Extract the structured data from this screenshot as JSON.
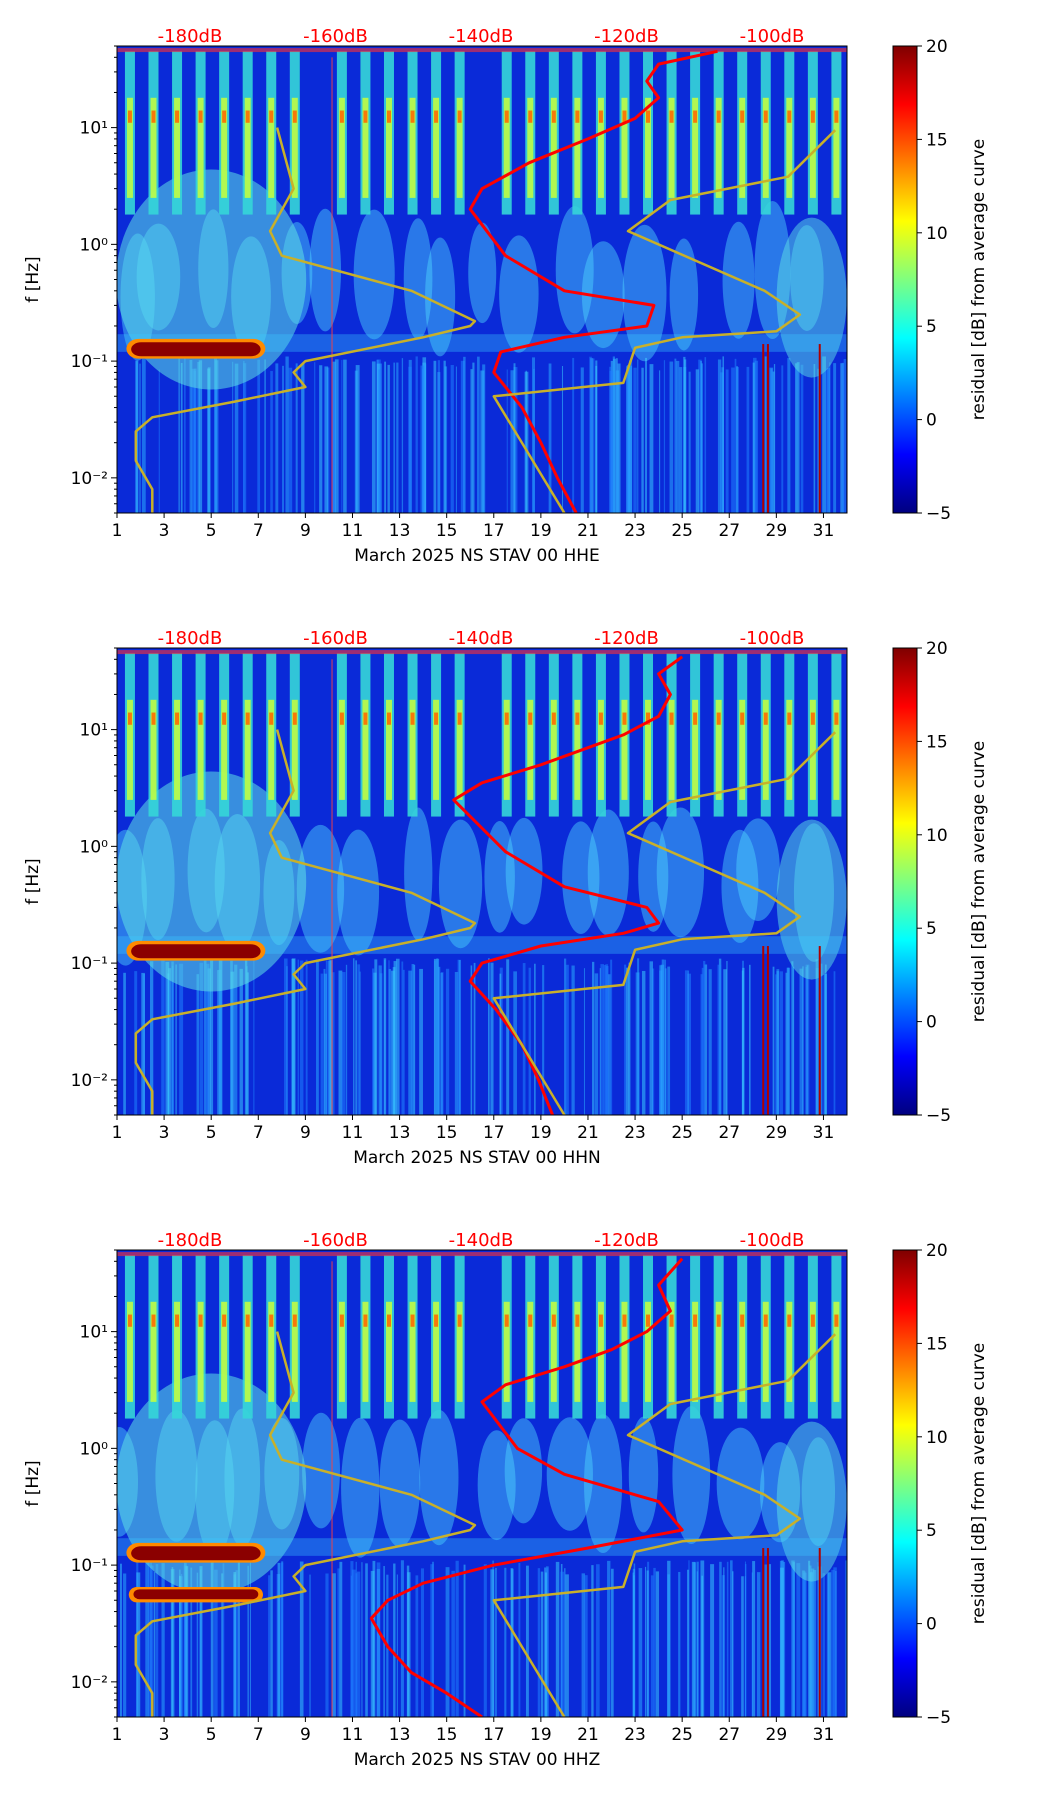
{
  "colorbar": {
    "label": "residual [dB] from average curve",
    "ticks": [
      "20",
      "15",
      "10",
      "5",
      "0",
      "−5"
    ],
    "tick_values": [
      20,
      15,
      10,
      5,
      0,
      -5
    ],
    "range": [
      -5,
      20
    ],
    "colormap": [
      "#00007f",
      "#0000ff",
      "#007fff",
      "#00ffff",
      "#7fff7f",
      "#ffff00",
      "#ff7f00",
      "#ff0000",
      "#7f0000"
    ]
  },
  "axes": {
    "ylabel": "f [Hz]",
    "yticks": [
      "10⁻²",
      "10⁻¹",
      "10⁰",
      "10¹"
    ],
    "ytick_values": [
      0.01,
      0.1,
      1,
      10
    ],
    "ylim": [
      0.005,
      50
    ],
    "xticks": [
      "1",
      "3",
      "5",
      "7",
      "9",
      "11",
      "13",
      "15",
      "17",
      "19",
      "21",
      "23",
      "25",
      "27",
      "29",
      "31"
    ],
    "xtick_values": [
      1,
      3,
      5,
      7,
      9,
      11,
      13,
      15,
      17,
      19,
      21,
      23,
      25,
      27,
      29,
      31
    ],
    "xlim": [
      1,
      32
    ],
    "db_labels": [
      "-180dB",
      "-160dB",
      "-140dB",
      "-120dB",
      "-100dB"
    ],
    "db_values": [
      -180,
      -160,
      -140,
      -120,
      -100
    ]
  },
  "chart_data": [
    {
      "type": "heatmap",
      "title": "",
      "xlabel": "March 2025 NS STAV 00 HHE",
      "ylabel": "f [Hz]",
      "xlim": [
        1,
        32
      ],
      "ylim": [
        0.005,
        50
      ],
      "overlays": [
        {
          "name": "noise-curve-1",
          "color": "#ff0000",
          "points": [
            [
              20.5,
              0.005
            ],
            [
              19.7,
              0.01
            ],
            [
              19,
              0.02
            ],
            [
              18.2,
              0.04
            ],
            [
              17,
              0.08
            ],
            [
              17.3,
              0.12
            ],
            [
              20,
              0.16
            ],
            [
              23.5,
              0.2
            ],
            [
              23.8,
              0.3
            ],
            [
              20,
              0.4
            ],
            [
              17.5,
              0.8
            ],
            [
              16,
              2
            ],
            [
              16.5,
              3
            ],
            [
              18.5,
              5
            ],
            [
              21,
              8
            ],
            [
              23,
              12
            ],
            [
              24,
              18
            ],
            [
              23.5,
              25
            ],
            [
              24,
              35
            ],
            [
              26.5,
              45
            ]
          ]
        },
        {
          "name": "low-noise-model",
          "color": "#c8b02a",
          "points": [
            [
              2.5,
              0.005
            ],
            [
              2.5,
              0.008
            ],
            [
              1.8,
              0.014
            ],
            [
              1.8,
              0.025
            ],
            [
              2.5,
              0.033
            ],
            [
              6,
              0.045
            ],
            [
              9,
              0.06
            ],
            [
              8.5,
              0.08
            ],
            [
              9,
              0.1
            ],
            [
              14,
              0.16
            ],
            [
              16,
              0.2
            ],
            [
              16.2,
              0.22
            ],
            [
              13.5,
              0.4
            ],
            [
              8,
              0.8
            ],
            [
              7.5,
              1.3
            ],
            [
              8.5,
              3
            ],
            [
              7.8,
              10
            ]
          ]
        },
        {
          "name": "high-noise-model",
          "color": "#c8b02a",
          "points": [
            [
              20,
              0.005
            ],
            [
              17,
              0.05
            ],
            [
              22.5,
              0.065
            ],
            [
              23,
              0.13
            ],
            [
              25,
              0.16
            ],
            [
              29,
              0.18
            ],
            [
              30,
              0.25
            ],
            [
              28.5,
              0.4
            ],
            [
              22.7,
              1.3
            ],
            [
              24.5,
              2.4
            ],
            [
              29.5,
              3.8
            ],
            [
              31.5,
              9.5
            ]
          ]
        }
      ]
    },
    {
      "type": "heatmap",
      "title": "",
      "xlabel": "March 2025 NS STAV 00 HHN",
      "ylabel": "f [Hz]",
      "xlim": [
        1,
        32
      ],
      "ylim": [
        0.005,
        50
      ],
      "overlays": [
        {
          "name": "noise-curve-1",
          "color": "#ff0000",
          "points": [
            [
              19.5,
              0.005
            ],
            [
              18.9,
              0.01
            ],
            [
              18.2,
              0.02
            ],
            [
              17.1,
              0.04
            ],
            [
              16,
              0.07
            ],
            [
              16.5,
              0.1
            ],
            [
              19,
              0.14
            ],
            [
              22.5,
              0.18
            ],
            [
              24,
              0.22
            ],
            [
              23.5,
              0.3
            ],
            [
              20,
              0.45
            ],
            [
              17.5,
              0.9
            ],
            [
              15.3,
              2.5
            ],
            [
              16.5,
              3.5
            ],
            [
              19,
              5
            ],
            [
              21,
              7
            ],
            [
              22.5,
              9
            ],
            [
              24,
              13
            ],
            [
              24.5,
              20
            ],
            [
              24,
              30
            ],
            [
              25,
              42
            ]
          ]
        },
        {
          "name": "low-noise-model",
          "color": "#c8b02a",
          "points": [
            [
              2.5,
              0.005
            ],
            [
              2.5,
              0.008
            ],
            [
              1.8,
              0.014
            ],
            [
              1.8,
              0.025
            ],
            [
              2.5,
              0.033
            ],
            [
              6,
              0.045
            ],
            [
              9,
              0.06
            ],
            [
              8.5,
              0.08
            ],
            [
              9,
              0.1
            ],
            [
              14,
              0.16
            ],
            [
              16,
              0.2
            ],
            [
              16.2,
              0.22
            ],
            [
              13.5,
              0.4
            ],
            [
              8,
              0.8
            ],
            [
              7.5,
              1.3
            ],
            [
              8.5,
              3
            ],
            [
              7.8,
              10
            ]
          ]
        },
        {
          "name": "high-noise-model",
          "color": "#c8b02a",
          "points": [
            [
              20,
              0.005
            ],
            [
              17,
              0.05
            ],
            [
              22.5,
              0.065
            ],
            [
              23,
              0.13
            ],
            [
              25,
              0.16
            ],
            [
              29,
              0.18
            ],
            [
              30,
              0.25
            ],
            [
              28.5,
              0.4
            ],
            [
              22.7,
              1.3
            ],
            [
              24.5,
              2.4
            ],
            [
              29.5,
              3.8
            ],
            [
              31.5,
              9.5
            ]
          ]
        }
      ]
    },
    {
      "type": "heatmap",
      "title": "",
      "xlabel": "March 2025 NS STAV 00 HHZ",
      "ylabel": "f [Hz]",
      "xlim": [
        1,
        32
      ],
      "ylim": [
        0.005,
        50
      ],
      "overlays": [
        {
          "name": "noise-curve-1",
          "color": "#ff0000",
          "points": [
            [
              16.5,
              0.005
            ],
            [
              15,
              0.008
            ],
            [
              13.5,
              0.012
            ],
            [
              12.5,
              0.02
            ],
            [
              11.8,
              0.035
            ],
            [
              12.5,
              0.05
            ],
            [
              14,
              0.07
            ],
            [
              17,
              0.1
            ],
            [
              21,
              0.14
            ],
            [
              25,
              0.2
            ],
            [
              24,
              0.35
            ],
            [
              20,
              0.6
            ],
            [
              18,
              1
            ],
            [
              16.5,
              2.5
            ],
            [
              17.5,
              3.5
            ],
            [
              20,
              5
            ],
            [
              22,
              7
            ],
            [
              23.5,
              10
            ],
            [
              24.5,
              15
            ],
            [
              24,
              25
            ],
            [
              25,
              42
            ]
          ]
        },
        {
          "name": "low-noise-model",
          "color": "#c8b02a",
          "points": [
            [
              2.5,
              0.005
            ],
            [
              2.5,
              0.008
            ],
            [
              1.8,
              0.014
            ],
            [
              1.8,
              0.025
            ],
            [
              2.5,
              0.033
            ],
            [
              6,
              0.045
            ],
            [
              9,
              0.06
            ],
            [
              8.5,
              0.08
            ],
            [
              9,
              0.1
            ],
            [
              14,
              0.16
            ],
            [
              16,
              0.2
            ],
            [
              16.2,
              0.22
            ],
            [
              13.5,
              0.4
            ],
            [
              8,
              0.8
            ],
            [
              7.5,
              1.3
            ],
            [
              8.5,
              3
            ],
            [
              7.8,
              10
            ]
          ]
        },
        {
          "name": "high-noise-model",
          "color": "#c8b02a",
          "points": [
            [
              20,
              0.005
            ],
            [
              17,
              0.05
            ],
            [
              22.5,
              0.065
            ],
            [
              23,
              0.13
            ],
            [
              25,
              0.16
            ],
            [
              29,
              0.18
            ],
            [
              30,
              0.25
            ],
            [
              28.5,
              0.4
            ],
            [
              22.7,
              1.3
            ],
            [
              24.5,
              2.4
            ],
            [
              29.5,
              3.8
            ],
            [
              31.5,
              9.5
            ]
          ]
        }
      ]
    }
  ]
}
